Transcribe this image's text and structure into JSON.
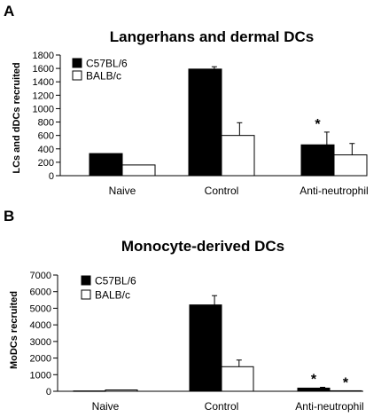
{
  "colors": {
    "series_1": "#000000",
    "series_2": "#ffffff",
    "outline": "#000000"
  },
  "chart_data": [
    {
      "panel": "A",
      "type": "bar",
      "title": "Langerhans and dermal DCs",
      "xlabel": "",
      "ylabel": "LCs and dDCs recruited",
      "ylim": [
        0,
        1800
      ],
      "yticks": [
        "0",
        "200",
        "400",
        "600",
        "800",
        "1000",
        "1200",
        "1400",
        "1600",
        "1800"
      ],
      "categories": [
        "Naive",
        "Control",
        "Anti-neutrophil"
      ],
      "legend_position": "top-left",
      "series": [
        {
          "name": "C57BL/6",
          "values": [
            330,
            1590,
            460
          ],
          "errors": [
            0,
            35,
            190
          ]
        },
        {
          "name": "BALB/c",
          "values": [
            160,
            600,
            310
          ],
          "errors": [
            0,
            190,
            170
          ]
        }
      ],
      "annotations": [
        {
          "label": "*",
          "category": "Anti-neutrophil",
          "series": "C57BL/6"
        }
      ]
    },
    {
      "panel": "B",
      "type": "bar",
      "title": "Monocyte-derived DCs",
      "xlabel": "",
      "ylabel": "MoDCs recruited",
      "ylim": [
        0,
        7000
      ],
      "yticks": [
        "0",
        "1000",
        "2000",
        "3000",
        "4000",
        "5000",
        "6000",
        "7000"
      ],
      "categories": [
        "Naive",
        "Control",
        "Anti-neutrophil"
      ],
      "legend_position": "top-left",
      "series": [
        {
          "name": "C57BL/6",
          "values": [
            20,
            5200,
            190
          ],
          "errors": [
            0,
            560,
            50
          ]
        },
        {
          "name": "BALB/c",
          "values": [
            80,
            1480,
            30
          ],
          "errors": [
            0,
            400,
            0
          ]
        }
      ],
      "annotations": [
        {
          "label": "*",
          "category": "Anti-neutrophil",
          "series": "C57BL/6"
        },
        {
          "label": "*",
          "category": "Anti-neutrophil",
          "series": "BALB/c"
        }
      ]
    }
  ]
}
